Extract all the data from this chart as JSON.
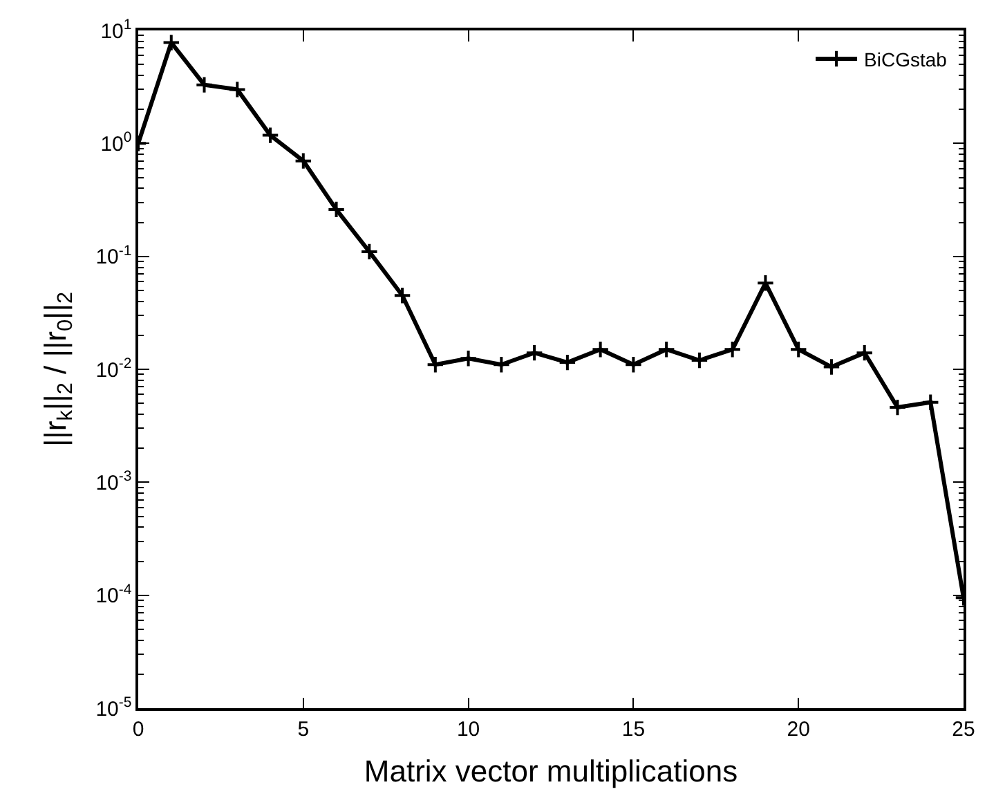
{
  "chart_data": {
    "type": "line",
    "xlabel": "Matrix vector multiplications",
    "ylabel": "||r$_{k}$||$_{2}$ / ||r$_{0}$||$_{2}$",
    "x": [
      0,
      1,
      2,
      3,
      4,
      5,
      6,
      7,
      8,
      9,
      10,
      11,
      12,
      13,
      14,
      15,
      16,
      17,
      18,
      19,
      20,
      21,
      22,
      23,
      24,
      25
    ],
    "series": [
      {
        "name": "BiCGstab",
        "color": "#000000",
        "values": [
          1.0,
          7.8,
          3.3,
          3.0,
          1.18,
          0.7,
          0.26,
          0.11,
          0.045,
          0.011,
          0.0125,
          0.011,
          0.014,
          0.0115,
          0.015,
          0.011,
          0.015,
          0.012,
          0.015,
          0.058,
          0.015,
          0.0105,
          0.014,
          0.0046,
          0.0051,
          9.5e-05
        ]
      }
    ],
    "log": "y",
    "xlim": [
      0,
      25
    ],
    "xticks": [
      0,
      5,
      10,
      15,
      20,
      25
    ],
    "ylim": [
      1e-05,
      10
    ],
    "yticks": [
      {
        "value": 1e-05,
        "label": "10$^{-5}$"
      },
      {
        "value": 0.0001,
        "label": "10$^{-4}$"
      },
      {
        "value": 0.001,
        "label": "10$^{-3}$"
      },
      {
        "value": 0.01,
        "label": "10$^{-2}$"
      },
      {
        "value": 0.1,
        "label": "10$^{-1}$"
      },
      {
        "value": 1,
        "label": "10$^{0}$"
      },
      {
        "value": 10,
        "label": "10$^{1}$"
      }
    ],
    "legend": "top right",
    "marker": "cross",
    "line_style": "solid"
  }
}
